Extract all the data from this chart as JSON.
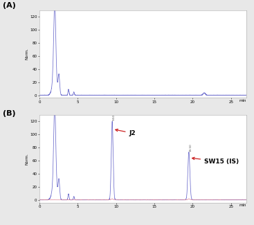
{
  "fig_width": 3.67,
  "fig_height": 3.25,
  "dpi": 100,
  "bg_color": "#e8e8e8",
  "panel_bg": "#ffffff",
  "label_A": "(A)",
  "label_B": "(B)",
  "label_fontsize": 8,
  "label_fontweight": "bold",
  "x_min": 0,
  "x_max": 27,
  "y_min": -4,
  "y_max": 130,
  "yticks": [
    0,
    20,
    40,
    60,
    80,
    100,
    120
  ],
  "xticks": [
    0,
    5,
    10,
    15,
    20,
    25
  ],
  "xlabel": "min",
  "ylabel": "Norm.",
  "line_color_blue": "#6b6bcc",
  "line_color_red": "#dd4444",
  "line_color_pink": "#e090a0",
  "line_width": 0.55,
  "annotation_J2": "J2",
  "annotation_SW15": "SW15 (IS)",
  "annotation_fontsize": 6.5,
  "annotation_fontweight": "bold",
  "tick_fontsize": 4,
  "ylabel_fontsize": 4,
  "xlabel_fontsize": 4,
  "peak_J2_x": 9.5,
  "peak_J2_height": 120,
  "peak_SW15_x": 19.5,
  "peak_SW15_height": 73,
  "arrow_color": "#cc2222"
}
